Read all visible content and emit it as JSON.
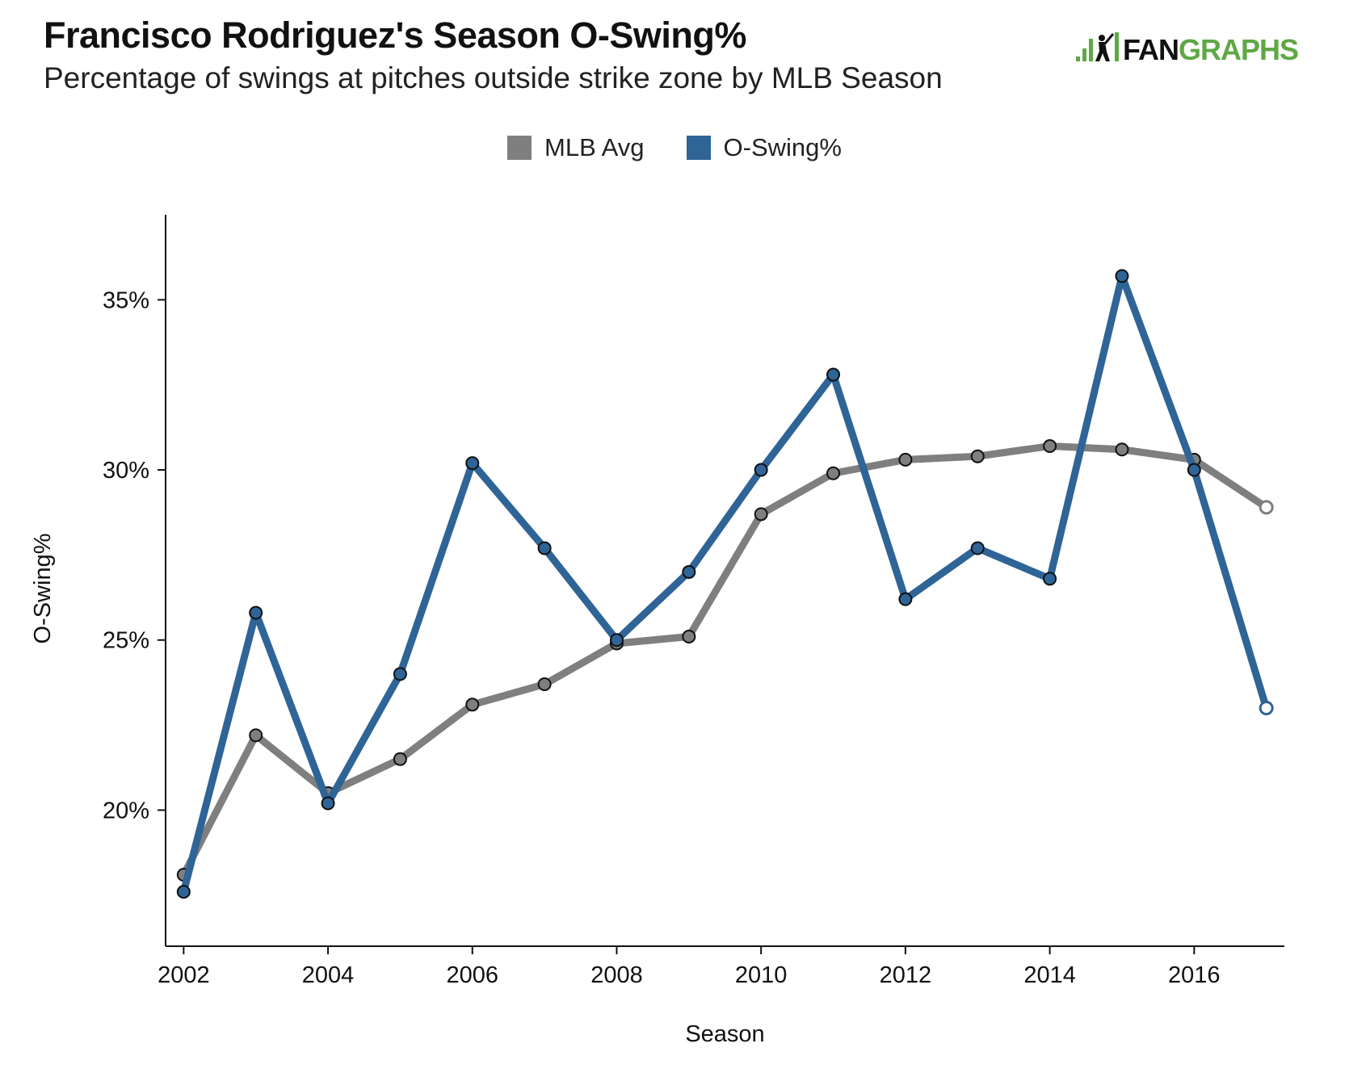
{
  "header": {
    "title": "Francisco Rodriguez's Season O-Swing%",
    "subtitle": "Percentage of swings at pitches outside strike zone by MLB Season",
    "logo_text": "FANGRAPHS"
  },
  "colors": {
    "mlb_avg": "#7f7f7f",
    "o_swing": "#2f6497",
    "logo_green": "#5fa845",
    "logo_dark": "#111111"
  },
  "chart_data": {
    "type": "line",
    "title": "Francisco Rodriguez's Season O-Swing%",
    "subtitle": "Percentage of swings at pitches outside strike zone by MLB Season",
    "xlabel": "Season",
    "ylabel": "O-Swing%",
    "x": [
      2002,
      2003,
      2004,
      2005,
      2006,
      2007,
      2008,
      2009,
      2010,
      2011,
      2012,
      2013,
      2014,
      2015,
      2016,
      2017
    ],
    "x_ticks": [
      2002,
      2004,
      2006,
      2008,
      2010,
      2012,
      2014,
      2016
    ],
    "x_tick_labels": [
      "2002",
      "2004",
      "2006",
      "2008",
      "2010",
      "2012",
      "2014",
      "2016"
    ],
    "y_ticks": [
      20,
      25,
      30,
      35
    ],
    "y_tick_labels": [
      "20%",
      "25%",
      "30%",
      "35%"
    ],
    "xlim": [
      2001.75,
      2017.25
    ],
    "ylim": [
      16.0,
      37.5
    ],
    "grid": false,
    "legend_position": "top-center",
    "series": [
      {
        "name": "MLB Avg",
        "color": "#7f7f7f",
        "values": [
          18.1,
          22.2,
          20.5,
          21.5,
          23.1,
          23.7,
          24.9,
          25.1,
          28.7,
          29.9,
          30.3,
          30.4,
          30.7,
          30.6,
          30.3,
          28.9
        ],
        "open_last_point": true
      },
      {
        "name": "O-Swing%",
        "color": "#2f6497",
        "values": [
          17.6,
          25.8,
          20.2,
          24.0,
          30.2,
          27.7,
          25.0,
          27.0,
          30.0,
          32.8,
          26.2,
          27.7,
          26.8,
          35.7,
          30.0,
          23.0
        ],
        "open_last_point": true
      }
    ]
  }
}
